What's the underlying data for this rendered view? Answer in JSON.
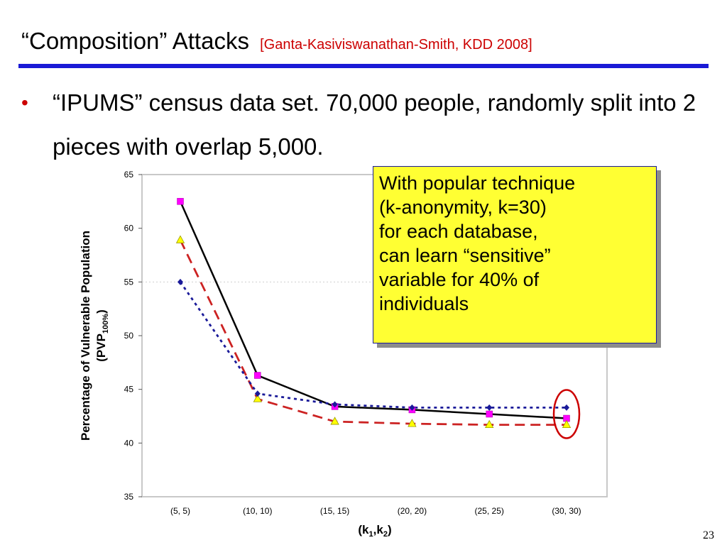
{
  "slide": {
    "title": "“Composition” Attacks",
    "citation": "[Ganta-Kasiviswanathan-Smith, KDD 2008]",
    "bullet": "“IPUMS” census data set. 70,000 people, randomly split into 2 pieces with overlap 5,000.",
    "page_number": "23",
    "accent_color": "#cc0000",
    "rule_color": "#1a1ad6"
  },
  "callout": {
    "lines": [
      "With popular technique",
      "(k-anonymity, k=30)",
      "for each database,",
      "can learn “sensitive”",
      "variable for 40% of",
      "individuals"
    ],
    "background": "#ffff33"
  },
  "chart_data": {
    "type": "line",
    "categories": [
      "(5, 5)",
      "(10, 10)",
      "(15, 15)",
      "(20, 20)",
      "(25, 25)",
      "(30, 30)"
    ],
    "ylim": [
      35,
      65
    ],
    "yticks": [
      35,
      40,
      45,
      50,
      55,
      60,
      65
    ],
    "ylabel_line1": "Percentage of Vulnerable Population",
    "ylabel_line2": "(PVP",
    "ylabel_sub": "100%",
    "ylabel_close": ")",
    "xlabel": "(k",
    "xlabel_sub1": "1",
    "xlabel_mid": ",k",
    "xlabel_sub2": "2",
    "xlabel_close": ")",
    "grid": "dotted line at 55",
    "series": [
      {
        "values": [
          62.5,
          46.3,
          43.4,
          43.1,
          42.7,
          42.3
        ],
        "color": "#000000",
        "marker": "square",
        "marker_color": "#ff00ff",
        "dash": "solid"
      },
      {
        "values": [
          58.9,
          44.1,
          42.0,
          41.8,
          41.7,
          41.7
        ],
        "color": "#cc2222",
        "marker": "triangle",
        "marker_color": "#ffff00",
        "dash": "long-dash"
      },
      {
        "values": [
          55.0,
          44.6,
          43.6,
          43.3,
          43.3,
          43.3
        ],
        "color": "#1a1a99",
        "marker": "diamond",
        "marker_color": "#1a1a99",
        "dash": "dotted"
      }
    ],
    "highlight": {
      "category": "(30, 30)",
      "color": "#cc0000"
    }
  }
}
